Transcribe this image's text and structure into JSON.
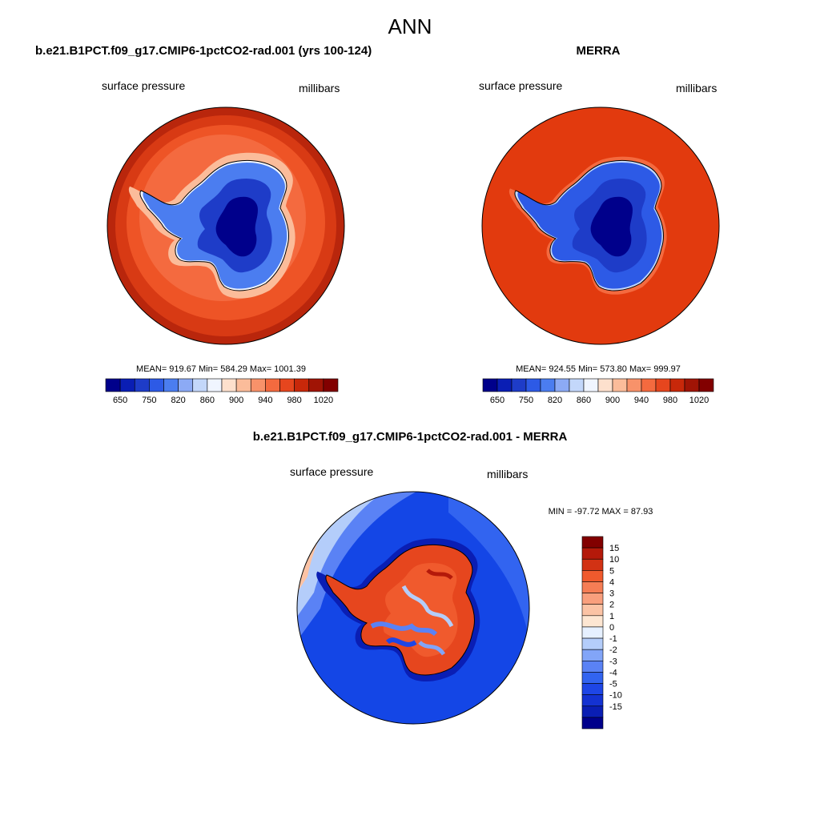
{
  "page": {
    "title": "ANN"
  },
  "panels": [
    {
      "title": "b.e21.B1PCT.f09_g17.CMIP6-1pctCO2-rad.001 (yrs 100-124)",
      "left_label": "surface pressure",
      "right_label": "millibars",
      "stats": "MEAN= 919.67  Min= 584.29  Max= 1001.39"
    },
    {
      "title": "MERRA",
      "left_label": "surface pressure",
      "right_label": "millibars",
      "stats": "MEAN= 924.55  Min= 573.80  Max= 999.97"
    },
    {
      "title": "b.e21.B1PCT.f09_g17.CMIP6-1pctCO2-rad.001 - MERRA",
      "left_label": "surface pressure",
      "right_label": "millibars",
      "stats": "MIN = -97.72 MAX =  87.93"
    }
  ],
  "colors": {
    "abs_palette": [
      "#00008b",
      "#0a1eb4",
      "#1e3cc8",
      "#2d5ae6",
      "#4b7df0",
      "#8caaf5",
      "#c3d7fa",
      "#f0f5ff",
      "#fde0cd",
      "#fbbc9a",
      "#f8926a",
      "#f46a3f",
      "#e6461e",
      "#c8280a",
      "#a01405",
      "#820000"
    ],
    "diff_palette": [
      "#00008b",
      "#0a1eb4",
      "#1432d2",
      "#1e46e6",
      "#3264f0",
      "#5a82f5",
      "#82a5f8",
      "#b4cdfa",
      "#e6f0ff",
      "#fde6d2",
      "#fbc3a5",
      "#f99f7d",
      "#f57d55",
      "#f05a2d",
      "#d23214",
      "#b4190a",
      "#820000"
    ],
    "abs_ocean": "#e6461e",
    "abs_ocean_inner": "#f05a2d",
    "abs_ice": "#2d5ae6",
    "diff_ocean": "#1446e6"
  },
  "chart_data": [
    {
      "type": "heatmap",
      "title": "b.e21.B1PCT.f09_g17.CMIP6-1pctCO2-rad.001 (yrs 100-124)",
      "variable": "surface pressure",
      "units": "millibars",
      "projection": "south polar stereographic",
      "mean": 919.67,
      "min": 584.29,
      "max": 1001.39,
      "colorbar_levels": [
        650,
        700,
        750,
        800,
        820,
        840,
        860,
        880,
        900,
        920,
        940,
        960,
        980,
        1000,
        1020
      ],
      "colorbar_labels": [
        "650",
        "750",
        "820",
        "860",
        "900",
        "940",
        "980",
        "1020"
      ]
    },
    {
      "type": "heatmap",
      "title": "MERRA",
      "variable": "surface pressure",
      "units": "millibars",
      "projection": "south polar stereographic",
      "mean": 924.55,
      "min": 573.8,
      "max": 999.97,
      "colorbar_levels": [
        650,
        700,
        750,
        800,
        820,
        840,
        860,
        880,
        900,
        920,
        940,
        960,
        980,
        1000,
        1020
      ],
      "colorbar_labels": [
        "650",
        "750",
        "820",
        "860",
        "900",
        "940",
        "980",
        "1020"
      ]
    },
    {
      "type": "heatmap",
      "title": "b.e21.B1PCT.f09_g17.CMIP6-1pctCO2-rad.001 - MERRA",
      "variable": "surface pressure",
      "units": "millibars",
      "projection": "south polar stereographic",
      "min": -97.72,
      "max": 87.93,
      "colorbar_levels": [
        15,
        10,
        5,
        4,
        3,
        2,
        1,
        0,
        -1,
        -2,
        -3,
        -4,
        -5,
        -10,
        -15
      ],
      "colorbar_labels": [
        "15",
        "10",
        "5",
        "4",
        "3",
        "2",
        "1",
        "0",
        "-1",
        "-2",
        "-3",
        "-4",
        "-5",
        "-10",
        "-15"
      ]
    }
  ]
}
